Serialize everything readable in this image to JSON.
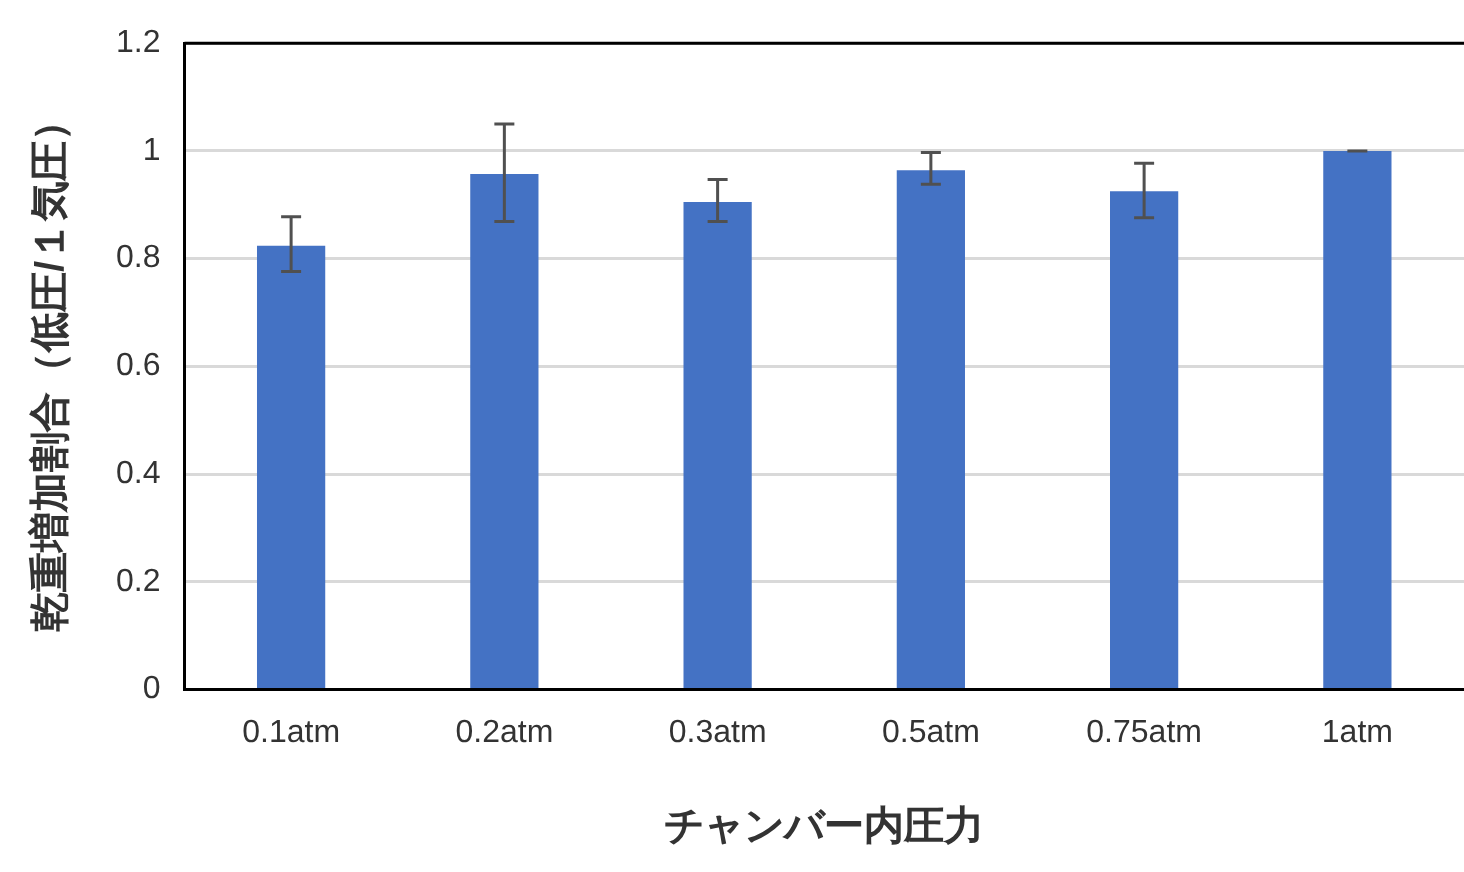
{
  "chart_data": {
    "type": "bar",
    "xlabel": "チャンバー内圧力",
    "ylabel": "乾重増加割合（低圧/１気圧）",
    "categories": [
      "0.1atm",
      "0.2atm",
      "0.3atm",
      "0.5atm",
      "0.75atm",
      "1atm"
    ],
    "values": [
      0.824,
      0.957,
      0.905,
      0.964,
      0.925,
      1.0
    ],
    "errors": [
      [
        0.776,
        0.878
      ],
      [
        0.869,
        1.05
      ],
      [
        0.869,
        0.947
      ],
      [
        0.938,
        0.997
      ],
      [
        0.876,
        0.977
      ],
      [
        1.0,
        1.0
      ]
    ],
    "color": "#4472c4",
    "ylim": [
      0,
      1.2
    ],
    "yticks": [
      0,
      0.2,
      0.4,
      0.6,
      0.8,
      1,
      1.2
    ],
    "grid": "y",
    "legend": false
  }
}
